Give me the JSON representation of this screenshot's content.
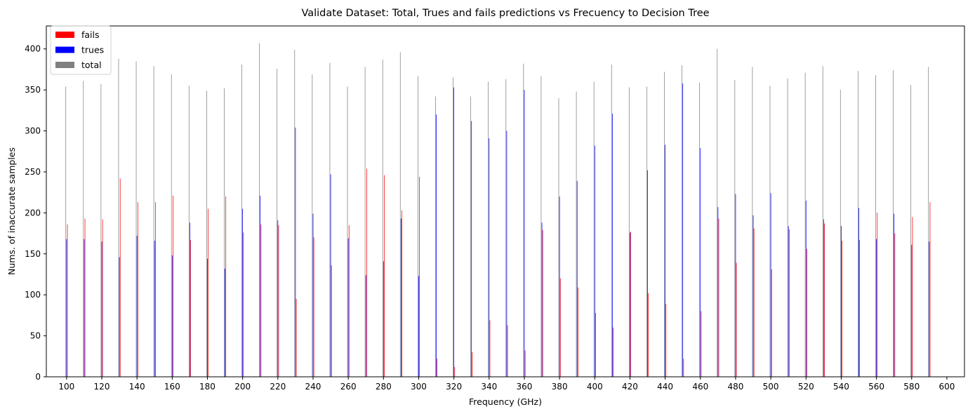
{
  "chart_data": {
    "type": "bar",
    "title": "Validate Dataset: Total, Trues and fails predictions vs Frecuency to Decision Tree",
    "xlabel": "Frequency (GHz)",
    "ylabel": "Nums. of inaccurate samples",
    "xlim": [
      88.5,
      610
    ],
    "ylim": [
      0,
      428
    ],
    "xticks": [
      100,
      120,
      140,
      160,
      180,
      200,
      220,
      240,
      260,
      280,
      300,
      320,
      340,
      360,
      380,
      400,
      420,
      440,
      460,
      480,
      500,
      520,
      540,
      560,
      580,
      600
    ],
    "yticks": [
      0,
      50,
      100,
      150,
      200,
      250,
      300,
      350,
      400
    ],
    "legend_position": "top-left",
    "x": [
      100,
      110,
      120,
      130,
      140,
      150,
      160,
      170,
      180,
      190,
      200,
      210,
      220,
      230,
      240,
      250,
      260,
      270,
      280,
      290,
      300,
      310,
      320,
      330,
      340,
      350,
      360,
      370,
      380,
      390,
      400,
      410,
      420,
      430,
      440,
      450,
      460,
      470,
      480,
      490,
      500,
      510,
      520,
      530,
      540,
      550,
      560,
      570,
      580,
      590
    ],
    "series": [
      {
        "name": "fails",
        "color": "#ff0000",
        "values": [
          186,
          193,
          192,
          242,
          213,
          213,
          221,
          167,
          205,
          220,
          176,
          186,
          185,
          95,
          170,
          136,
          185,
          254,
          246,
          203,
          244,
          22,
          12,
          30,
          69,
          63,
          32,
          179,
          120,
          109,
          78,
          60,
          177,
          102,
          89,
          22,
          80,
          193,
          139,
          181,
          131,
          180,
          156,
          187,
          166,
          167,
          200,
          175,
          195,
          213
        ]
      },
      {
        "name": "trues",
        "color": "#0000ff",
        "values": [
          168,
          168,
          165,
          146,
          172,
          166,
          148,
          188,
          144,
          132,
          205,
          221,
          191,
          304,
          199,
          247,
          169,
          124,
          141,
          193,
          123,
          320,
          353,
          312,
          291,
          300,
          350,
          188,
          220,
          239,
          282,
          321,
          176,
          252,
          283,
          358,
          279,
          207,
          223,
          197,
          224,
          184,
          215,
          192,
          184,
          206,
          168,
          199,
          161,
          165
        ]
      },
      {
        "name": "total",
        "color": "#808080",
        "values": [
          354,
          361,
          357,
          388,
          385,
          379,
          369,
          355,
          349,
          352,
          381,
          407,
          376,
          399,
          369,
          383,
          354,
          378,
          387,
          396,
          367,
          342,
          365,
          342,
          360,
          363,
          382,
          367,
          340,
          348,
          360,
          381,
          353,
          354,
          372,
          380,
          359,
          400,
          362,
          378,
          355,
          364,
          371,
          379,
          350,
          373,
          368,
          374,
          356,
          378
        ]
      }
    ]
  }
}
